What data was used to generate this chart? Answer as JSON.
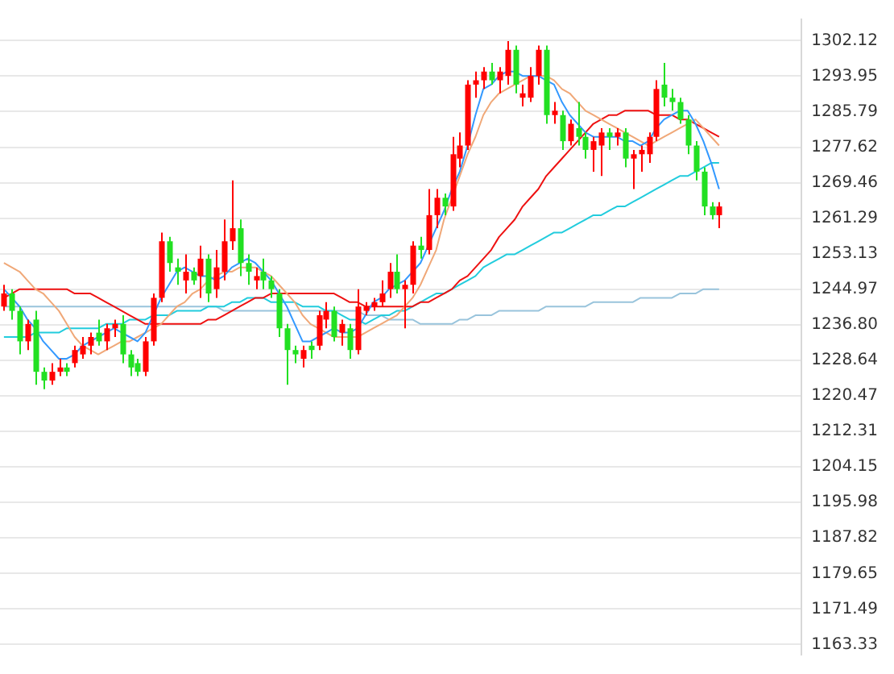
{
  "chart_data": {
    "type": "candlestick",
    "categories": [
      null,
      null,
      null,
      null,
      null,
      null,
      null,
      null,
      null,
      null,
      null,
      null,
      null,
      null,
      null,
      null,
      null,
      null,
      null,
      null,
      null,
      null,
      null,
      null,
      null,
      null,
      null,
      null,
      null,
      null,
      null,
      null,
      null,
      null,
      null,
      null,
      null,
      null,
      null,
      null,
      null,
      null,
      null,
      null,
      null,
      null,
      null,
      null,
      null,
      null,
      null,
      null,
      null,
      null,
      null,
      null,
      null,
      null,
      null,
      null,
      null,
      null,
      null,
      null,
      null,
      null,
      null,
      null,
      null,
      null,
      null,
      null,
      null,
      null,
      null,
      null,
      null,
      null,
      null,
      null,
      null,
      null,
      null,
      null,
      null,
      null,
      null,
      null,
      null,
      null,
      null,
      null
    ],
    "ohlc": [
      [
        1241,
        1246,
        1240,
        1244
      ],
      [
        1244,
        1245,
        1238,
        1240
      ],
      [
        1240,
        1241,
        1230,
        1233
      ],
      [
        1233,
        1238,
        1231,
        1237
      ],
      [
        1238,
        1240,
        1223,
        1226
      ],
      [
        1226,
        1227,
        1222,
        1224
      ],
      [
        1224,
        1228,
        1223,
        1226
      ],
      [
        1226,
        1229,
        1225,
        1227
      ],
      [
        1227,
        1228,
        1225,
        1226
      ],
      [
        1228,
        1232,
        1227,
        1231
      ],
      [
        1230,
        1234,
        1229,
        1232
      ],
      [
        1232,
        1235,
        1230,
        1234
      ],
      [
        1235,
        1238,
        1232,
        1233
      ],
      [
        1233,
        1237,
        1231,
        1236
      ],
      [
        1236,
        1238,
        1234,
        1237
      ],
      [
        1237,
        1239,
        1228,
        1230
      ],
      [
        1230,
        1231,
        1225,
        1227
      ],
      [
        1228,
        1229,
        1225,
        1226
      ],
      [
        1226,
        1234,
        1225,
        1233
      ],
      [
        1233,
        1244,
        1232,
        1243
      ],
      [
        1243,
        1258,
        1242,
        1256
      ],
      [
        1256,
        1257,
        1249,
        1251
      ],
      [
        1250,
        1252,
        1246,
        1249
      ],
      [
        1247,
        1253,
        1244,
        1249
      ],
      [
        1249,
        1250,
        1246,
        1247
      ],
      [
        1248,
        1255,
        1243,
        1252
      ],
      [
        1252,
        1253,
        1242,
        1244
      ],
      [
        1245,
        1254,
        1243,
        1250
      ],
      [
        1249,
        1261,
        1247,
        1256
      ],
      [
        1256,
        1270,
        1254,
        1259
      ],
      [
        1259,
        1261,
        1248,
        1251
      ],
      [
        1251,
        1253,
        1246,
        1249
      ],
      [
        1247,
        1250,
        1245,
        1248
      ],
      [
        1249,
        1252,
        1245,
        1247
      ],
      [
        1247,
        1248,
        1243,
        1245
      ],
      [
        1244,
        1245,
        1234,
        1236
      ],
      [
        1236,
        1237,
        1223,
        1231
      ],
      [
        1231,
        1232,
        1228,
        1230
      ],
      [
        1229,
        1232,
        1227,
        1231
      ],
      [
        1232,
        1233,
        1229,
        1231
      ],
      [
        1232,
        1240,
        1231,
        1239
      ],
      [
        1238,
        1242,
        1236,
        1240
      ],
      [
        1240,
        1241,
        1233,
        1234
      ],
      [
        1235,
        1238,
        1232,
        1237
      ],
      [
        1236,
        1237,
        1229,
        1231
      ],
      [
        1231,
        1245,
        1230,
        1241
      ],
      [
        1240,
        1242,
        1239,
        1241
      ],
      [
        1241,
        1243,
        1240,
        1242
      ],
      [
        1242,
        1247,
        1241,
        1244
      ],
      [
        1245,
        1251,
        1243,
        1249
      ],
      [
        1249,
        1253,
        1244,
        1245
      ],
      [
        1245,
        1247,
        1236,
        1246
      ],
      [
        1246,
        1256,
        1244,
        1255
      ],
      [
        1255,
        1257,
        1252,
        1254
      ],
      [
        1254,
        1268,
        1253,
        1262
      ],
      [
        1262,
        1268,
        1259,
        1266
      ],
      [
        1266,
        1267,
        1262,
        1264
      ],
      [
        1264,
        1280,
        1263,
        1276
      ],
      [
        1275,
        1281,
        1273,
        1278
      ],
      [
        1278,
        1293,
        1277,
        1292
      ],
      [
        1292,
        1295,
        1289,
        1293
      ],
      [
        1293,
        1296,
        1291,
        1295
      ],
      [
        1295,
        1297,
        1292,
        1293
      ],
      [
        1293,
        1296,
        1290,
        1295
      ],
      [
        1294,
        1302,
        1292,
        1300
      ],
      [
        1300,
        1301,
        1290,
        1292
      ],
      [
        1289,
        1292,
        1287,
        1290
      ],
      [
        1289,
        1296,
        1288,
        1294
      ],
      [
        1294,
        1301,
        1292,
        1300
      ],
      [
        1300,
        1301,
        1283,
        1285
      ],
      [
        1285,
        1288,
        1283,
        1286
      ],
      [
        1285,
        1286,
        1277,
        1279
      ],
      [
        1279,
        1284,
        1278,
        1283
      ],
      [
        1282,
        1288,
        1278,
        1280
      ],
      [
        1280,
        1281,
        1275,
        1277
      ],
      [
        1277,
        1280,
        1272,
        1279
      ],
      [
        1278,
        1282,
        1271,
        1281
      ],
      [
        1281,
        1282,
        1277,
        1280
      ],
      [
        1280,
        1282,
        1278,
        1281
      ],
      [
        1281,
        1282,
        1273,
        1275
      ],
      [
        1275,
        1277,
        1268,
        1276
      ],
      [
        1276,
        1278,
        1272,
        1277
      ],
      [
        1276,
        1281,
        1274,
        1280
      ],
      [
        1280,
        1293,
        1279,
        1291
      ],
      [
        1292,
        1297,
        1287,
        1289
      ],
      [
        1289,
        1291,
        1286,
        1288
      ],
      [
        1288,
        1289,
        1283,
        1284
      ],
      [
        1284,
        1285,
        1276,
        1278
      ],
      [
        1278,
        1279,
        1270,
        1272
      ],
      [
        1272,
        1273,
        1262,
        1264
      ],
      [
        1264,
        1265,
        1261,
        1262
      ],
      [
        1262,
        1265,
        1259,
        1264
      ]
    ],
    "colors": [
      "#ff0000",
      "#22e022",
      "#22e022",
      "#ff0000",
      "#22e022",
      "#22e022",
      "#ff0000",
      "#ff0000",
      "#22e022",
      "#ff0000",
      "#ff0000",
      "#ff0000",
      "#22e022",
      "#ff0000",
      "#ff0000",
      "#22e022",
      "#22e022",
      "#22e022",
      "#ff0000",
      "#ff0000",
      "#ff0000",
      "#22e022",
      "#22e022",
      "#ff0000",
      "#22e022",
      "#ff0000",
      "#22e022",
      "#ff0000",
      "#ff0000",
      "#ff0000",
      "#22e022",
      "#22e022",
      "#ff0000",
      "#22e022",
      "#22e022",
      "#22e022",
      "#22e022",
      "#22e022",
      "#ff0000",
      "#22e022",
      "#ff0000",
      "#ff0000",
      "#22e022",
      "#ff0000",
      "#22e022",
      "#ff0000",
      "#ff0000",
      "#ff0000",
      "#ff0000",
      "#ff0000",
      "#22e022",
      "#ff0000",
      "#ff0000",
      "#22e022",
      "#ff0000",
      "#ff0000",
      "#22e022",
      "#ff0000",
      "#ff0000",
      "#ff0000",
      "#ff0000",
      "#ff0000",
      "#22e022",
      "#ff0000",
      "#ff0000",
      "#22e022",
      "#ff0000",
      "#ff0000",
      "#ff0000",
      "#22e022",
      "#ff0000",
      "#22e022",
      "#ff0000",
      "#22e022",
      "#22e022",
      "#ff0000",
      "#ff0000",
      "#22e022",
      "#ff0000",
      "#22e022",
      "#ff0000",
      "#ff0000",
      "#ff0000",
      "#ff0000",
      "#22e022",
      "#22e022",
      "#22e022",
      "#22e022",
      "#22e022",
      "#22e022",
      "#22e022",
      "#ff0000"
    ],
    "series": [
      {
        "type": "line",
        "color": "#3399ff",
        "values": [
          1245,
          1243,
          1241,
          1238,
          1236,
          1233,
          1231,
          1229,
          1229,
          1230,
          1232,
          1233,
          1234,
          1235,
          1236,
          1235,
          1234,
          1233,
          1235,
          1239,
          1243,
          1246,
          1249,
          1250,
          1249,
          1248,
          1248,
          1247,
          1248,
          1250,
          1251,
          1252,
          1251,
          1249,
          1247,
          1244,
          1241,
          1237,
          1233,
          1233,
          1234,
          1235,
          1236,
          1235,
          1235,
          1236,
          1239,
          1242,
          1243,
          1245,
          1246,
          1247,
          1249,
          1251,
          1255,
          1259,
          1263,
          1268,
          1272,
          1278,
          1285,
          1291,
          1292,
          1294,
          1295,
          1295,
          1294,
          1294,
          1294,
          1293,
          1292,
          1288,
          1285,
          1283,
          1281,
          1280,
          1280,
          1280,
          1280,
          1279,
          1279,
          1278,
          1279,
          1282,
          1284,
          1285,
          1286,
          1286,
          1283,
          1279,
          1274,
          1268
        ]
      },
      {
        "type": "line",
        "color": "#f0a878",
        "values": [
          1251,
          1250,
          1249,
          1247,
          1245,
          1244,
          1242,
          1240,
          1237,
          1234,
          1232,
          1231,
          1230,
          1231,
          1232,
          1233,
          1233,
          1234,
          1235,
          1236,
          1237,
          1239,
          1241,
          1242,
          1244,
          1245,
          1247,
          1248,
          1249,
          1249,
          1250,
          1250,
          1250,
          1249,
          1248,
          1246,
          1244,
          1242,
          1239,
          1237,
          1236,
          1235,
          1234,
          1234,
          1234,
          1234,
          1235,
          1236,
          1237,
          1238,
          1239,
          1241,
          1243,
          1246,
          1250,
          1254,
          1261,
          1266,
          1271,
          1276,
          1280,
          1285,
          1288,
          1290,
          1291,
          1292,
          1293,
          1294,
          1294,
          1294,
          1293,
          1291,
          1290,
          1288,
          1286,
          1285,
          1284,
          1283,
          1282,
          1281,
          1280,
          1279,
          1278,
          1279,
          1280,
          1281,
          1282,
          1283,
          1284,
          1282,
          1280,
          1278
        ]
      },
      {
        "type": "line",
        "color": "#ee1111",
        "values": [
          1243,
          1244,
          1245,
          1245,
          1245,
          1245,
          1245,
          1245,
          1245,
          1244,
          1244,
          1244,
          1243,
          1242,
          1241,
          1240,
          1239,
          1238,
          1237,
          1237,
          1237,
          1237,
          1237,
          1237,
          1237,
          1237,
          1238,
          1238,
          1239,
          1240,
          1241,
          1242,
          1243,
          1243,
          1244,
          1244,
          1244,
          1244,
          1244,
          1244,
          1244,
          1244,
          1244,
          1243,
          1242,
          1242,
          1241,
          1241,
          1241,
          1241,
          1241,
          1241,
          1241,
          1242,
          1242,
          1243,
          1244,
          1245,
          1247,
          1248,
          1250,
          1252,
          1254,
          1257,
          1259,
          1261,
          1264,
          1266,
          1268,
          1271,
          1273,
          1275,
          1277,
          1279,
          1281,
          1283,
          1284,
          1285,
          1285,
          1286,
          1286,
          1286,
          1286,
          1285,
          1285,
          1285,
          1284,
          1284,
          1283,
          1282,
          1281,
          1280
        ]
      },
      {
        "type": "line",
        "color": "#22ccdd",
        "values": [
          1234,
          1234,
          1234,
          1234,
          1235,
          1235,
          1235,
          1235,
          1236,
          1236,
          1236,
          1236,
          1236,
          1237,
          1237,
          1237,
          1238,
          1238,
          1238,
          1239,
          1239,
          1239,
          1240,
          1240,
          1240,
          1240,
          1241,
          1241,
          1241,
          1242,
          1242,
          1243,
          1243,
          1243,
          1242,
          1242,
          1242,
          1242,
          1241,
          1241,
          1241,
          1240,
          1240,
          1239,
          1238,
          1238,
          1237,
          1238,
          1239,
          1239,
          1240,
          1240,
          1241,
          1242,
          1243,
          1244,
          1244,
          1245,
          1246,
          1247,
          1248,
          1250,
          1251,
          1252,
          1253,
          1253,
          1254,
          1255,
          1256,
          1257,
          1258,
          1258,
          1259,
          1260,
          1261,
          1262,
          1262,
          1263,
          1264,
          1264,
          1265,
          1266,
          1267,
          1268,
          1269,
          1270,
          1271,
          1271,
          1272,
          1273,
          1274,
          1274
        ]
      },
      {
        "type": "line",
        "color": "#99c4dc",
        "values": [
          1241,
          1241,
          1241,
          1241,
          1241,
          1241,
          1241,
          1241,
          1241,
          1241,
          1241,
          1241,
          1241,
          1241,
          1241,
          1241,
          1241,
          1241,
          1241,
          1241,
          1241,
          1241,
          1241,
          1241,
          1241,
          1241,
          1241,
          1241,
          1240,
          1240,
          1240,
          1240,
          1240,
          1240,
          1240,
          1240,
          1240,
          1240,
          1240,
          1240,
          1240,
          1240,
          1240,
          1240,
          1240,
          1240,
          1239,
          1239,
          1239,
          1238,
          1238,
          1238,
          1238,
          1237,
          1237,
          1237,
          1237,
          1237,
          1238,
          1238,
          1239,
          1239,
          1239,
          1240,
          1240,
          1240,
          1240,
          1240,
          1240,
          1241,
          1241,
          1241,
          1241,
          1241,
          1241,
          1242,
          1242,
          1242,
          1242,
          1242,
          1242,
          1243,
          1243,
          1243,
          1243,
          1243,
          1244,
          1244,
          1244,
          1245,
          1245,
          1245
        ]
      }
    ],
    "ylim": [
      1161,
      1307
    ],
    "yticks": [
      1163.33,
      1171.49,
      1179.65,
      1187.82,
      1195.98,
      1204.15,
      1212.31,
      1220.47,
      1228.64,
      {
        "value": 1236.8,
        "label": "1236.80"
      },
      1244.97,
      1253.13,
      1261.29,
      1269.46,
      1277.62,
      1285.79,
      1293.95,
      1302.12
    ],
    "grid": "y",
    "tick_labels": "y"
  }
}
